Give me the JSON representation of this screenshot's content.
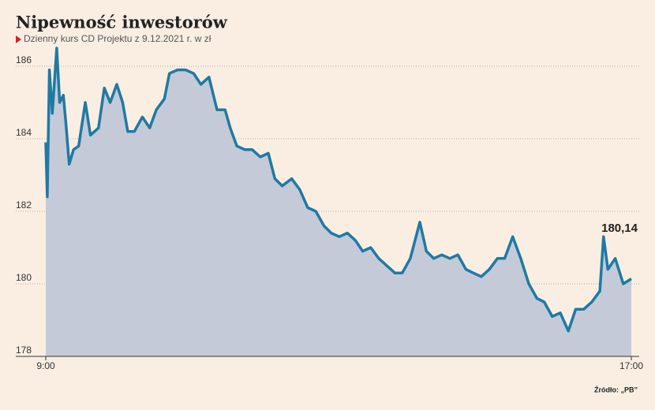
{
  "chart_data": {
    "type": "area",
    "title": "Nipewność inwestorów",
    "subtitle": "Dzienny kurs CD Projektu z 9.12.2021 r. w zł",
    "source": "Źródło: „PB”",
    "x": [
      9.0,
      9.02,
      9.05,
      9.09,
      9.15,
      9.19,
      9.24,
      9.28,
      9.32,
      9.38,
      9.45,
      9.54,
      9.61,
      9.72,
      9.8,
      9.88,
      9.97,
      10.05,
      10.12,
      10.21,
      10.32,
      10.42,
      10.51,
      10.62,
      10.69,
      10.8,
      10.91,
      11.02,
      11.12,
      11.23,
      11.34,
      11.45,
      11.52,
      11.61,
      11.72,
      11.82,
      11.93,
      12.04,
      12.13,
      12.23,
      12.36,
      12.47,
      12.58,
      12.69,
      12.8,
      12.9,
      13.01,
      13.12,
      13.23,
      13.33,
      13.44,
      13.55,
      13.66,
      13.77,
      13.87,
      13.98,
      14.11,
      14.2,
      14.3,
      14.41,
      14.52,
      14.63,
      14.74,
      14.84,
      14.95,
      15.06,
      15.17,
      15.27,
      15.38,
      15.49,
      15.6,
      15.71,
      15.81,
      15.92,
      16.03,
      16.14,
      16.24,
      16.35,
      16.46,
      16.57,
      16.62,
      16.68,
      16.78,
      16.89,
      17.0
    ],
    "values": [
      183.9,
      182.4,
      185.9,
      184.7,
      186.5,
      185.0,
      185.2,
      184.3,
      183.3,
      183.7,
      183.8,
      185.0,
      184.1,
      184.3,
      185.4,
      185.0,
      185.5,
      185.0,
      184.2,
      184.2,
      184.6,
      184.3,
      184.8,
      185.1,
      185.8,
      185.9,
      185.9,
      185.8,
      185.5,
      185.7,
      184.8,
      184.8,
      184.3,
      183.8,
      183.7,
      183.7,
      183.5,
      183.6,
      182.9,
      182.7,
      182.9,
      182.6,
      182.1,
      182.0,
      181.6,
      181.4,
      181.3,
      181.4,
      181.2,
      180.9,
      181.0,
      180.7,
      180.5,
      180.3,
      180.3,
      180.7,
      181.7,
      180.9,
      180.7,
      180.8,
      180.7,
      180.8,
      180.4,
      180.3,
      180.2,
      180.4,
      180.7,
      180.7,
      181.3,
      180.7,
      180.0,
      179.6,
      179.5,
      179.1,
      179.2,
      178.7,
      179.3,
      179.3,
      179.5,
      179.8,
      181.3,
      180.4,
      180.7,
      180.0,
      180.14
    ],
    "value_labels": [
      null,
      null,
      null,
      null,
      null,
      null,
      null,
      null,
      null,
      null,
      null,
      null,
      null,
      null,
      null,
      null,
      null,
      null,
      null,
      null,
      null,
      null,
      null,
      null,
      null,
      null,
      null,
      null,
      null,
      null,
      null,
      null,
      null,
      null,
      null,
      null,
      null,
      null,
      null,
      null,
      null,
      null,
      null,
      null,
      null,
      null,
      null,
      null,
      null,
      null,
      null,
      null,
      null,
      null,
      null,
      null,
      null,
      null,
      null,
      null,
      null,
      null,
      null,
      null,
      null,
      null,
      null,
      null,
      null,
      null,
      null,
      null,
      null,
      null,
      null,
      null,
      null,
      null,
      null,
      null,
      null,
      null,
      null,
      null,
      "180,14"
    ],
    "color": "#1f7aa3",
    "fill": "#c5cad8",
    "xlim": [
      9,
      17
    ],
    "xticks": [
      {
        "value": 9,
        "label": "9:00"
      },
      {
        "value": 17,
        "label": "17:00"
      }
    ],
    "ylim": [
      178,
      186
    ],
    "yticks": [
      178,
      180,
      182,
      184,
      186
    ],
    "grid": true
  }
}
